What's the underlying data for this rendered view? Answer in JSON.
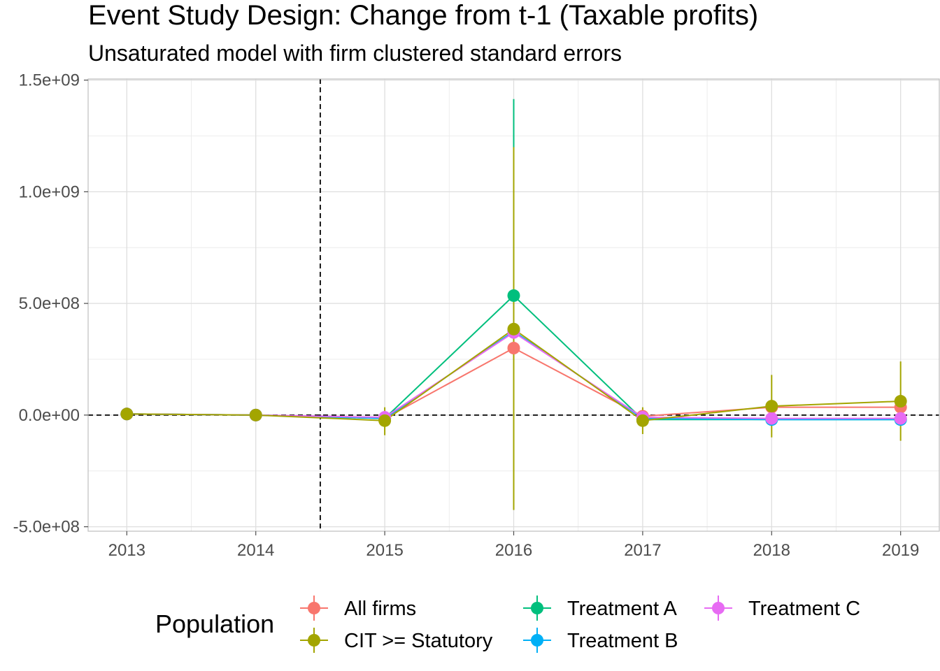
{
  "chart_data": {
    "type": "line",
    "title": "Event Study Design: Change from t-1 (Taxable profits)",
    "subtitle": "Unsaturated model with firm clustered standard errors",
    "xlabel": "",
    "ylabel": "",
    "x": [
      2013,
      2014,
      2015,
      2016,
      2017,
      2018,
      2019
    ],
    "x_tick_labels": [
      "2013",
      "2014",
      "2015",
      "2016",
      "2017",
      "2018",
      "2019"
    ],
    "y_tick_values": [
      -500000000,
      0,
      500000000,
      1000000000,
      1500000000
    ],
    "y_tick_labels": [
      "-5.0e+08",
      "0.0e+00",
      "5.0e+08",
      "1.0e+09",
      "1.5e+09"
    ],
    "xlim": [
      2012.7,
      2019.3
    ],
    "ylim": [
      -520000000,
      1505000000
    ],
    "grid": true,
    "vline_x": 2014.5,
    "hline_y": 0,
    "legend": {
      "title": "Population",
      "position": "bottom"
    },
    "series": [
      {
        "name": "All firms",
        "color": "#F8766D",
        "values": [
          5000000,
          0,
          -15000000,
          300000000,
          -5000000,
          35000000,
          35000000
        ],
        "lower": [
          null,
          null,
          -30000000,
          280000000,
          -15000000,
          25000000,
          25000000
        ],
        "upper": [
          null,
          null,
          0,
          320000000,
          5000000,
          45000000,
          45000000
        ]
      },
      {
        "name": "CIT >= Statutory",
        "color": "#A3A500",
        "values": [
          5000000,
          0,
          -25000000,
          385000000,
          -25000000,
          40000000,
          62000000
        ],
        "lower": [
          null,
          null,
          -90000000,
          -425000000,
          -85000000,
          -100000000,
          -115000000
        ],
        "upper": [
          null,
          null,
          35000000,
          1200000000,
          35000000,
          180000000,
          240000000
        ]
      },
      {
        "name": "Treatment A",
        "color": "#00BF7D",
        "values": [
          5000000,
          0,
          -15000000,
          535000000,
          -20000000,
          -20000000,
          -20000000
        ],
        "lower": [
          null,
          null,
          -35000000,
          -340000000,
          -35000000,
          -35000000,
          -35000000
        ],
        "upper": [
          null,
          null,
          5000000,
          1415000000,
          -5000000,
          -5000000,
          -5000000
        ]
      },
      {
        "name": "Treatment B",
        "color": "#00B0F6",
        "values": [
          5000000,
          0,
          -15000000,
          375000000,
          -15000000,
          -20000000,
          -20000000
        ],
        "lower": [
          null,
          null,
          -25000000,
          355000000,
          -25000000,
          -30000000,
          -30000000
        ],
        "upper": [
          null,
          null,
          -5000000,
          395000000,
          -5000000,
          -10000000,
          -10000000
        ]
      },
      {
        "name": "Treatment C",
        "color": "#E76BF3",
        "values": [
          5000000,
          0,
          -10000000,
          370000000,
          -10000000,
          -15000000,
          -15000000
        ],
        "lower": [
          null,
          null,
          -20000000,
          350000000,
          -20000000,
          -25000000,
          -25000000
        ],
        "upper": [
          null,
          null,
          0,
          390000000,
          0,
          -5000000,
          -5000000
        ]
      }
    ]
  }
}
